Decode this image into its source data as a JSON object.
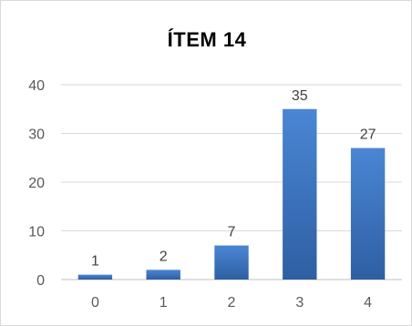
{
  "chart_data": {
    "type": "bar",
    "title": "ÍTEM 14",
    "categories": [
      "0",
      "1",
      "2",
      "3",
      "4"
    ],
    "values": [
      1,
      2,
      7,
      35,
      27
    ],
    "data_labels": [
      "1",
      "2",
      "7",
      "35",
      "27"
    ],
    "ylim": [
      0,
      40
    ],
    "yticks": [
      0,
      10,
      20,
      30,
      40
    ],
    "ytick_labels": [
      "0",
      "10",
      "20",
      "30",
      "40"
    ],
    "xlabel": "",
    "ylabel": "",
    "grid": "horizontal",
    "legend": "none",
    "bar_color": "#3a75c4"
  }
}
